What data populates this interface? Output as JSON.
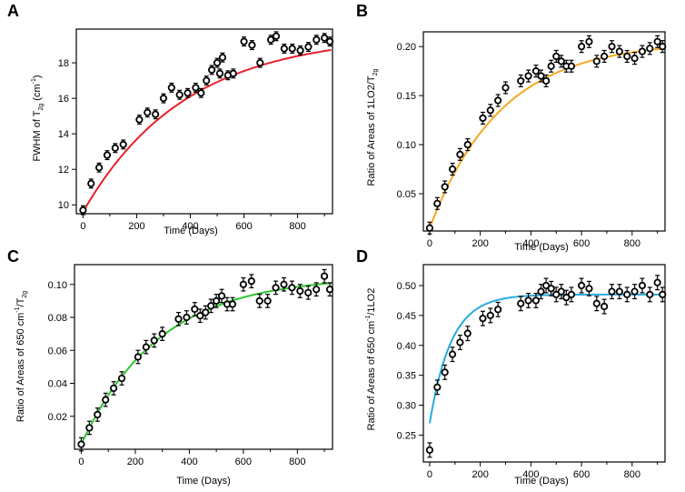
{
  "chart_data": [
    {
      "panel": "A",
      "type": "scatter",
      "ylabel": {
        "main": "FWHM of T",
        "sub": "2g",
        "tail": " (cm",
        "sup": "-1",
        "end": ")"
      },
      "xlabel": "Time (Days)",
      "xlim": [
        -25,
        930
      ],
      "ylim": [
        9.5,
        19.9
      ],
      "xticks": [
        0,
        200,
        400,
        600,
        800
      ],
      "yticks": [
        10,
        12,
        14,
        16,
        18
      ],
      "ytick_labels": [
        "10",
        "12",
        "14",
        "16",
        "18"
      ],
      "fit_color": "#e8212b",
      "fit": {
        "a": 9.6,
        "b": 10.0,
        "tau": 380
      },
      "x": [
        0,
        30,
        60,
        90,
        120,
        150,
        210,
        240,
        270,
        300,
        330,
        360,
        390,
        420,
        440,
        460,
        480,
        500,
        510,
        520,
        540,
        560,
        600,
        630,
        660,
        700,
        720,
        750,
        780,
        810,
        840,
        870,
        900,
        920
      ],
      "y": [
        9.7,
        11.2,
        12.1,
        12.8,
        13.2,
        13.4,
        14.8,
        15.2,
        15.1,
        16.0,
        16.6,
        16.2,
        16.3,
        16.6,
        16.3,
        17.0,
        17.6,
        18.0,
        17.4,
        18.3,
        17.3,
        17.4,
        19.2,
        19.0,
        18.0,
        19.3,
        19.5,
        18.8,
        18.8,
        18.7,
        18.9,
        19.3,
        19.4,
        19.2
      ],
      "err": 0.25
    },
    {
      "panel": "B",
      "type": "scatter",
      "ylabel": {
        "main": "Ratio of Areas of 1LO2/T",
        "sub": "2g",
        "tail": "",
        "sup": "",
        "end": ""
      },
      "xlabel": "Time (Days)",
      "xlim": [
        -25,
        930
      ],
      "ylim": [
        0.012,
        0.215
      ],
      "xticks": [
        0,
        200,
        400,
        600,
        800
      ],
      "yticks": [
        0.05,
        0.1,
        0.15,
        0.2
      ],
      "ytick_labels": [
        "0.05",
        "0.10",
        "0.15",
        "0.20"
      ],
      "fit_color": "#f5a623",
      "fit": {
        "a": 0.015,
        "b": 0.19,
        "tau": 280
      },
      "x": [
        0,
        30,
        60,
        90,
        120,
        150,
        210,
        240,
        270,
        300,
        360,
        390,
        420,
        440,
        460,
        480,
        500,
        520,
        540,
        560,
        600,
        630,
        660,
        690,
        720,
        750,
        780,
        810,
        840,
        870,
        900,
        920
      ],
      "y": [
        0.015,
        0.04,
        0.057,
        0.075,
        0.09,
        0.1,
        0.127,
        0.135,
        0.145,
        0.158,
        0.165,
        0.17,
        0.175,
        0.17,
        0.165,
        0.18,
        0.19,
        0.185,
        0.18,
        0.18,
        0.2,
        0.205,
        0.185,
        0.19,
        0.2,
        0.195,
        0.19,
        0.188,
        0.195,
        0.198,
        0.205,
        0.2
      ],
      "err": 0.006
    },
    {
      "panel": "C",
      "type": "scatter",
      "ylabel": {
        "main": "Ratio of Areas of 650 cm",
        "sup": "-1",
        "tail": "/T",
        "sub": "2g",
        "end": ""
      },
      "xlabel": "Time (Days)",
      "xlim": [
        -25,
        930
      ],
      "ylim": [
        0.0,
        0.112
      ],
      "xticks": [
        0,
        200,
        400,
        600,
        800
      ],
      "yticks": [
        0.02,
        0.04,
        0.06,
        0.08,
        0.1
      ],
      "ytick_labels": [
        "0.02",
        "0.04",
        "0.06",
        "0.08",
        "0.10"
      ],
      "fit_color": "#2ec42e",
      "fit": {
        "a": 0.003,
        "b": 0.102,
        "tau": 290
      },
      "x": [
        0,
        30,
        60,
        90,
        120,
        150,
        210,
        240,
        270,
        300,
        360,
        390,
        420,
        440,
        460,
        480,
        500,
        520,
        540,
        560,
        600,
        630,
        660,
        690,
        720,
        750,
        780,
        810,
        840,
        870,
        900,
        920
      ],
      "y": [
        0.003,
        0.013,
        0.021,
        0.03,
        0.037,
        0.043,
        0.056,
        0.062,
        0.066,
        0.07,
        0.079,
        0.08,
        0.085,
        0.081,
        0.083,
        0.087,
        0.09,
        0.093,
        0.088,
        0.088,
        0.1,
        0.102,
        0.09,
        0.09,
        0.098,
        0.1,
        0.098,
        0.096,
        0.095,
        0.097,
        0.105,
        0.097
      ],
      "err": 0.004
    },
    {
      "panel": "D",
      "type": "scatter",
      "ylabel": {
        "main": "Ratio of Areas of 650 cm",
        "sup": "-1",
        "tail": "/1LO2",
        "sub": "",
        "end": ""
      },
      "xlabel": "Time (Days)",
      "xlim": [
        -25,
        930
      ],
      "ylim": [
        0.205,
        0.535
      ],
      "xticks": [
        0,
        200,
        400,
        600,
        800
      ],
      "yticks": [
        0.25,
        0.3,
        0.35,
        0.4,
        0.45,
        0.5
      ],
      "ytick_labels": [
        "0.25",
        "0.30",
        "0.35",
        "0.40",
        "0.45",
        "0.50"
      ],
      "fit_color": "#29aae1",
      "fit": {
        "a": 0.27,
        "b": 0.215,
        "tau": 85
      },
      "x": [
        0,
        30,
        60,
        90,
        120,
        150,
        210,
        240,
        270,
        360,
        390,
        420,
        440,
        460,
        480,
        500,
        520,
        540,
        560,
        600,
        630,
        660,
        690,
        720,
        750,
        780,
        810,
        840,
        870,
        900,
        920
      ],
      "y": [
        0.225,
        0.33,
        0.355,
        0.385,
        0.405,
        0.42,
        0.445,
        0.45,
        0.46,
        0.47,
        0.475,
        0.475,
        0.49,
        0.5,
        0.495,
        0.485,
        0.49,
        0.48,
        0.485,
        0.5,
        0.495,
        0.47,
        0.465,
        0.49,
        0.49,
        0.485,
        0.49,
        0.5,
        0.485,
        0.505,
        0.485
      ],
      "err": 0.012
    }
  ]
}
